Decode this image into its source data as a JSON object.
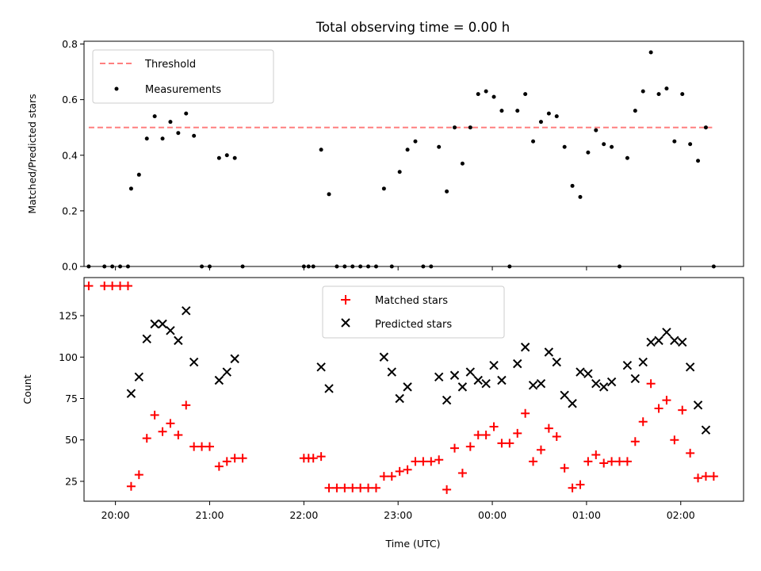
{
  "title": "Total observing time = 0.00 h",
  "chart_data": [
    {
      "type": "scatter",
      "ylabel": "Matched/Predicted stars",
      "xlim": [
        "19:40",
        "02:40"
      ],
      "ylim": [
        0,
        0.81
      ],
      "yticks": [
        "0.0",
        "0.2",
        "0.4",
        "0.6",
        "0.8"
      ],
      "legend_position": "upper-left",
      "threshold": {
        "name": "Threshold",
        "value": 0.5,
        "x_start": "19:43",
        "x_end": "02:20",
        "color": "#ff7f7f",
        "style": "dashed"
      },
      "measurements": {
        "name": "Measurements",
        "color": "#000000",
        "points": [
          [
            "19:43",
            0
          ],
          [
            "19:53",
            0
          ],
          [
            "19:58",
            0
          ],
          [
            "20:03",
            0
          ],
          [
            "20:08",
            0
          ],
          [
            "20:10",
            0.28
          ],
          [
            "20:15",
            0.33
          ],
          [
            "20:20",
            0.46
          ],
          [
            "20:25",
            0.54
          ],
          [
            "20:30",
            0.46
          ],
          [
            "20:35",
            0.52
          ],
          [
            "20:40",
            0.48
          ],
          [
            "20:45",
            0.55
          ],
          [
            "20:50",
            0.47
          ],
          [
            "20:55",
            0
          ],
          [
            "21:00",
            0
          ],
          [
            "21:06",
            0.39
          ],
          [
            "21:11",
            0.4
          ],
          [
            "21:16",
            0.39
          ],
          [
            "21:21",
            0
          ],
          [
            "22:00",
            0
          ],
          [
            "22:03",
            0
          ],
          [
            "22:06",
            0
          ],
          [
            "22:11",
            0.42
          ],
          [
            "22:16",
            0.26
          ],
          [
            "22:21",
            0
          ],
          [
            "22:26",
            0
          ],
          [
            "22:31",
            0
          ],
          [
            "22:36",
            0
          ],
          [
            "22:41",
            0
          ],
          [
            "22:46",
            0
          ],
          [
            "22:51",
            0.28
          ],
          [
            "22:56",
            0
          ],
          [
            "23:01",
            0.34
          ],
          [
            "23:06",
            0.42
          ],
          [
            "23:11",
            0.45
          ],
          [
            "23:16",
            0
          ],
          [
            "23:21",
            0
          ],
          [
            "23:26",
            0.43
          ],
          [
            "23:31",
            0.27
          ],
          [
            "23:36",
            0.5
          ],
          [
            "23:41",
            0.37
          ],
          [
            "23:46",
            0.5
          ],
          [
            "23:51",
            0.62
          ],
          [
            "23:56",
            0.63
          ],
          [
            "00:01",
            0.61
          ],
          [
            "00:06",
            0.56
          ],
          [
            "00:11",
            0
          ],
          [
            "00:16",
            0.56
          ],
          [
            "00:21",
            0.62
          ],
          [
            "00:26",
            0.45
          ],
          [
            "00:31",
            0.52
          ],
          [
            "00:36",
            0.55
          ],
          [
            "00:41",
            0.54
          ],
          [
            "00:46",
            0.43
          ],
          [
            "00:51",
            0.29
          ],
          [
            "00:56",
            0.25
          ],
          [
            "01:01",
            0.41
          ],
          [
            "01:06",
            0.49
          ],
          [
            "01:11",
            0.44
          ],
          [
            "01:16",
            0.43
          ],
          [
            "01:21",
            0
          ],
          [
            "01:26",
            0.39
          ],
          [
            "01:31",
            0.56
          ],
          [
            "01:36",
            0.63
          ],
          [
            "01:41",
            0.77
          ],
          [
            "01:46",
            0.62
          ],
          [
            "01:51",
            0.64
          ],
          [
            "01:56",
            0.45
          ],
          [
            "02:01",
            0.62
          ],
          [
            "02:06",
            0.44
          ],
          [
            "02:11",
            0.38
          ],
          [
            "02:16",
            0.5
          ],
          [
            "02:21",
            0
          ]
        ]
      }
    },
    {
      "type": "scatter",
      "xlabel": "Time (UTC)",
      "ylabel": "Count",
      "xlim": [
        "19:40",
        "02:40"
      ],
      "ylim": [
        13,
        148
      ],
      "xticks": [
        "20:00",
        "21:00",
        "22:00",
        "23:00",
        "00:00",
        "01:00",
        "02:00"
      ],
      "yticks": [
        "25",
        "50",
        "75",
        "100",
        "125"
      ],
      "legend_position": "upper-center",
      "series": [
        {
          "name": "Matched stars",
          "marker": "plus",
          "color": "#ff0000",
          "points": [
            [
              "19:43",
              143
            ],
            [
              "19:53",
              143
            ],
            [
              "19:58",
              143
            ],
            [
              "20:03",
              143
            ],
            [
              "20:08",
              143
            ],
            [
              "20:10",
              22
            ],
            [
              "20:15",
              29
            ],
            [
              "20:20",
              51
            ],
            [
              "20:25",
              65
            ],
            [
              "20:30",
              55
            ],
            [
              "20:35",
              60
            ],
            [
              "20:40",
              53
            ],
            [
              "20:45",
              71
            ],
            [
              "20:50",
              46
            ],
            [
              "20:55",
              46
            ],
            [
              "21:00",
              46
            ],
            [
              "21:06",
              34
            ],
            [
              "21:11",
              37
            ],
            [
              "21:16",
              39
            ],
            [
              "21:21",
              39
            ],
            [
              "22:00",
              39
            ],
            [
              "22:03",
              39
            ],
            [
              "22:06",
              39
            ],
            [
              "22:11",
              40
            ],
            [
              "22:16",
              21
            ],
            [
              "22:21",
              21
            ],
            [
              "22:26",
              21
            ],
            [
              "22:31",
              21
            ],
            [
              "22:36",
              21
            ],
            [
              "22:41",
              21
            ],
            [
              "22:46",
              21
            ],
            [
              "22:51",
              28
            ],
            [
              "22:56",
              28
            ],
            [
              "23:01",
              31
            ],
            [
              "23:06",
              32
            ],
            [
              "23:11",
              37
            ],
            [
              "23:16",
              37
            ],
            [
              "23:21",
              37
            ],
            [
              "23:26",
              38
            ],
            [
              "23:31",
              20
            ],
            [
              "23:36",
              45
            ],
            [
              "23:41",
              30
            ],
            [
              "23:46",
              46
            ],
            [
              "23:51",
              53
            ],
            [
              "23:56",
              53
            ],
            [
              "00:01",
              58
            ],
            [
              "00:06",
              48
            ],
            [
              "00:11",
              48
            ],
            [
              "00:16",
              54
            ],
            [
              "00:21",
              66
            ],
            [
              "00:26",
              37
            ],
            [
              "00:31",
              44
            ],
            [
              "00:36",
              57
            ],
            [
              "00:41",
              52
            ],
            [
              "00:46",
              33
            ],
            [
              "00:51",
              21
            ],
            [
              "00:56",
              23
            ],
            [
              "01:01",
              37
            ],
            [
              "01:06",
              41
            ],
            [
              "01:11",
              36
            ],
            [
              "01:16",
              37
            ],
            [
              "01:21",
              37
            ],
            [
              "01:26",
              37
            ],
            [
              "01:31",
              49
            ],
            [
              "01:36",
              61
            ],
            [
              "01:41",
              84
            ],
            [
              "01:46",
              69
            ],
            [
              "01:51",
              74
            ],
            [
              "01:56",
              50
            ],
            [
              "02:01",
              68
            ],
            [
              "02:06",
              42
            ],
            [
              "02:11",
              27
            ],
            [
              "02:16",
              28
            ],
            [
              "02:21",
              28
            ]
          ]
        },
        {
          "name": "Predicted stars",
          "marker": "x",
          "color": "#000000",
          "points": [
            [
              "20:10",
              78
            ],
            [
              "20:15",
              88
            ],
            [
              "20:20",
              111
            ],
            [
              "20:25",
              120
            ],
            [
              "20:30",
              120
            ],
            [
              "20:35",
              116
            ],
            [
              "20:40",
              110
            ],
            [
              "20:45",
              128
            ],
            [
              "20:50",
              97
            ],
            [
              "21:06",
              86
            ],
            [
              "21:11",
              91
            ],
            [
              "21:16",
              99
            ],
            [
              "22:11",
              94
            ],
            [
              "22:16",
              81
            ],
            [
              "22:51",
              100
            ],
            [
              "22:56",
              91
            ],
            [
              "23:01",
              75
            ],
            [
              "23:06",
              82
            ],
            [
              "23:26",
              88
            ],
            [
              "23:31",
              74
            ],
            [
              "23:36",
              89
            ],
            [
              "23:41",
              82
            ],
            [
              "23:46",
              91
            ],
            [
              "23:51",
              86
            ],
            [
              "23:56",
              84
            ],
            [
              "00:01",
              95
            ],
            [
              "00:06",
              86
            ],
            [
              "00:16",
              96
            ],
            [
              "00:21",
              106
            ],
            [
              "00:26",
              83
            ],
            [
              "00:31",
              84
            ],
            [
              "00:36",
              103
            ],
            [
              "00:41",
              97
            ],
            [
              "00:46",
              77
            ],
            [
              "00:51",
              72
            ],
            [
              "00:56",
              91
            ],
            [
              "01:01",
              90
            ],
            [
              "01:06",
              84
            ],
            [
              "01:11",
              82
            ],
            [
              "01:16",
              85
            ],
            [
              "01:26",
              95
            ],
            [
              "01:31",
              87
            ],
            [
              "01:36",
              97
            ],
            [
              "01:41",
              109
            ],
            [
              "01:46",
              110
            ],
            [
              "01:51",
              115
            ],
            [
              "01:56",
              110
            ],
            [
              "02:01",
              109
            ],
            [
              "02:06",
              94
            ],
            [
              "02:11",
              71
            ],
            [
              "02:16",
              56
            ]
          ]
        }
      ]
    }
  ]
}
